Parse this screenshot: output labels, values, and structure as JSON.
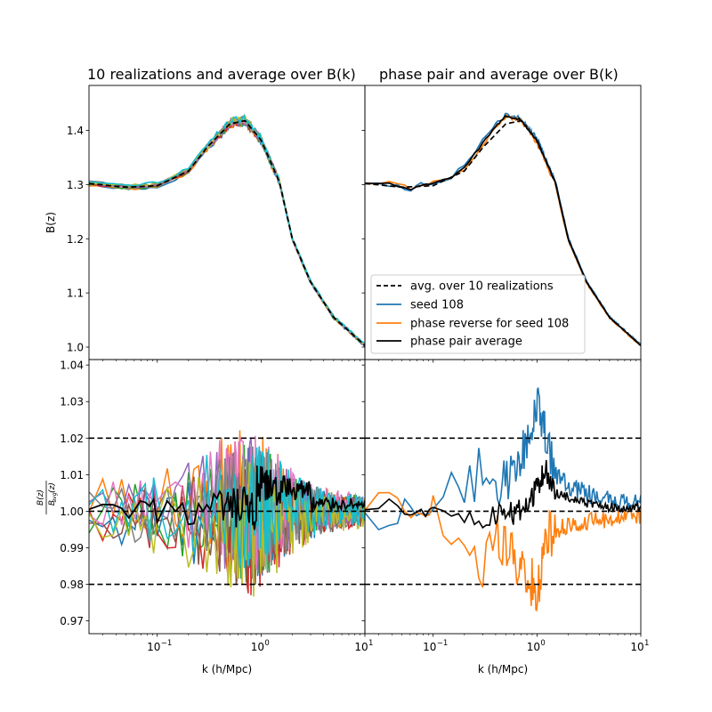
{
  "chart_data": [
    {
      "type": "line",
      "title": "10 realizations and average over B(k)",
      "xlabel": "",
      "ylabel": "B(z)",
      "xscale": "log",
      "xlim": [
        0.022,
        10
      ],
      "ylim": [
        0.977,
        1.483
      ],
      "yticks": [
        1.0,
        1.1,
        1.2,
        1.3,
        1.4
      ],
      "grid": false,
      "realization_series_count": 10,
      "realization_profile": {
        "k": [
          0.022,
          0.05,
          0.1,
          0.2,
          0.3,
          0.5,
          0.7,
          1.0,
          1.5,
          2.0,
          3.0,
          5.0,
          10.0
        ],
        "B": [
          1.302,
          1.295,
          1.298,
          1.325,
          1.368,
          1.412,
          1.418,
          1.382,
          1.305,
          1.2,
          1.12,
          1.055,
          1.003
        ]
      },
      "series": [
        {
          "name": "avg. over 10 realizations",
          "color": "#000000",
          "style": "dashed",
          "x": [
            0.022,
            0.05,
            0.1,
            0.2,
            0.3,
            0.5,
            0.7,
            1.0,
            1.5,
            2.0,
            3.0,
            5.0,
            10.0
          ],
          "y": [
            1.302,
            1.295,
            1.298,
            1.325,
            1.368,
            1.412,
            1.418,
            1.382,
            1.305,
            1.2,
            1.12,
            1.055,
            1.003
          ]
        }
      ]
    },
    {
      "type": "line",
      "title": "phase pair and average over B(k)",
      "xlabel": "",
      "ylabel": "",
      "xscale": "log",
      "xlim": [
        0.022,
        10
      ],
      "ylim": [
        0.977,
        1.483
      ],
      "grid": false,
      "legend": "lower-left",
      "series": [
        {
          "name": "avg. over 10 realizations",
          "color": "#000000",
          "style": "dashed",
          "x": [
            0.022,
            0.05,
            0.1,
            0.2,
            0.3,
            0.5,
            0.7,
            1.0,
            1.5,
            2.0,
            3.0,
            5.0,
            10.0
          ],
          "y": [
            1.302,
            1.295,
            1.298,
            1.325,
            1.368,
            1.412,
            1.418,
            1.382,
            1.305,
            1.2,
            1.12,
            1.055,
            1.003
          ]
        },
        {
          "name": "seed 108",
          "color": "#1f77b4",
          "style": "solid",
          "x": [
            0.022,
            0.04,
            0.06,
            0.08,
            0.1,
            0.15,
            0.2,
            0.3,
            0.4,
            0.5,
            0.7,
            1.0,
            1.5,
            2.0,
            3.0,
            5.0,
            10.0
          ],
          "y": [
            1.302,
            1.298,
            1.29,
            1.302,
            1.3,
            1.315,
            1.335,
            1.38,
            1.41,
            1.43,
            1.422,
            1.385,
            1.308,
            1.202,
            1.122,
            1.056,
            1.004
          ]
        },
        {
          "name": "phase reverse for seed 108",
          "color": "#ff7f0e",
          "style": "solid",
          "x": [
            0.022,
            0.04,
            0.06,
            0.08,
            0.1,
            0.15,
            0.2,
            0.3,
            0.4,
            0.5,
            0.7,
            1.0,
            1.5,
            2.0,
            3.0,
            5.0,
            10.0
          ],
          "y": [
            1.302,
            1.305,
            1.292,
            1.298,
            1.305,
            1.31,
            1.33,
            1.372,
            1.405,
            1.425,
            1.418,
            1.378,
            1.3,
            1.197,
            1.118,
            1.054,
            1.002
          ]
        },
        {
          "name": "phase pair average",
          "color": "#000000",
          "style": "solid",
          "x": [
            0.022,
            0.04,
            0.06,
            0.08,
            0.1,
            0.15,
            0.2,
            0.3,
            0.4,
            0.5,
            0.7,
            1.0,
            1.5,
            2.0,
            3.0,
            5.0,
            10.0
          ],
          "y": [
            1.302,
            1.301,
            1.291,
            1.3,
            1.302,
            1.312,
            1.332,
            1.376,
            1.407,
            1.427,
            1.42,
            1.381,
            1.304,
            1.199,
            1.12,
            1.055,
            1.003
          ]
        }
      ]
    },
    {
      "type": "line",
      "title": "",
      "xlabel": "k (h/Mpc)",
      "ylabel": "B(z) / B_avg(z)",
      "ylabel_num": "B(z)",
      "ylabel_den": "B",
      "ylabel_den_sub": "avg",
      "ylabel_den_tail": "(z)",
      "xscale": "log",
      "xlim": [
        0.022,
        10
      ],
      "ylim": [
        0.9665,
        1.0415
      ],
      "yticks": [
        0.97,
        0.98,
        0.99,
        1.0,
        1.01,
        1.02,
        1.03,
        1.04
      ],
      "xticks": [
        0.1,
        1,
        10
      ],
      "xtick_labels": [
        {
          "base": "10",
          "exp": "−1"
        },
        {
          "base": "10",
          "exp": "0"
        },
        {
          "base": "10",
          "exp": "1"
        }
      ],
      "reference_lines": [
        0.98,
        1.0,
        1.02
      ],
      "realization_series_count": 10,
      "noise_envelope": {
        "k": [
          0.022,
          0.05,
          0.1,
          0.2,
          0.3,
          0.5,
          0.8,
          1.2,
          2.0,
          4.0,
          10.0
        ],
        "amplitude": [
          0.006,
          0.008,
          0.01,
          0.013,
          0.015,
          0.018,
          0.02,
          0.017,
          0.01,
          0.006,
          0.004
        ]
      },
      "series": [
        {
          "name": "avg. over 10 realizations",
          "color": "#000000",
          "style": "dashed",
          "x": [
            0.022,
            10
          ],
          "y": [
            1.0,
            1.0
          ]
        }
      ]
    },
    {
      "type": "line",
      "title": "",
      "xlabel": "k (h/Mpc)",
      "ylabel": "",
      "xscale": "log",
      "xlim": [
        0.022,
        10
      ],
      "ylim": [
        0.9665,
        1.0415
      ],
      "xticks": [
        0.1,
        1,
        10
      ],
      "xtick_labels": [
        {
          "base": "10",
          "exp": "−1"
        },
        {
          "base": "10",
          "exp": "0"
        },
        {
          "base": "10",
          "exp": "1"
        }
      ],
      "reference_lines": [
        0.98,
        1.0,
        1.02
      ],
      "series": [
        {
          "name": "seed 108",
          "color": "#1f77b4",
          "style": "solid",
          "x": [
            0.022,
            0.04,
            0.06,
            0.1,
            0.15,
            0.2,
            0.3,
            0.4,
            0.5,
            0.7,
            1.0,
            1.2,
            1.5,
            2.0,
            3.0,
            5.0,
            10.0
          ],
          "y": [
            1.0,
            0.995,
            1.003,
            0.998,
            1.008,
            1.005,
            1.012,
            1.003,
            1.008,
            1.015,
            1.028,
            1.02,
            1.01,
            1.007,
            1.005,
            1.003,
            1.002
          ]
        },
        {
          "name": "phase reverse for seed 108",
          "color": "#ff7f0e",
          "style": "solid",
          "x": [
            0.022,
            0.04,
            0.06,
            0.1,
            0.15,
            0.2,
            0.3,
            0.4,
            0.5,
            0.7,
            1.0,
            1.2,
            1.5,
            2.0,
            3.0,
            5.0,
            10.0
          ],
          "y": [
            1.0,
            1.008,
            0.996,
            1.002,
            0.99,
            0.995,
            0.985,
            0.994,
            0.99,
            0.985,
            0.978,
            0.992,
            0.995,
            0.996,
            0.997,
            0.998,
            0.999
          ]
        },
        {
          "name": "phase pair average",
          "color": "#000000",
          "style": "solid",
          "x": [
            0.022,
            0.04,
            0.06,
            0.1,
            0.15,
            0.2,
            0.3,
            0.4,
            0.5,
            0.7,
            1.0,
            1.2,
            1.5,
            2.0,
            3.0,
            5.0,
            10.0
          ],
          "y": [
            1.0,
            1.003,
            0.999,
            1.0,
            0.999,
            1.0,
            0.999,
            0.999,
            0.999,
            1.0,
            1.006,
            1.012,
            1.005,
            1.004,
            1.002,
            1.001,
            1.001
          ]
        }
      ]
    }
  ],
  "colors": {
    "realizations": [
      "#1f77b4",
      "#ff7f0e",
      "#2ca02c",
      "#d62728",
      "#9467bd",
      "#8c564b",
      "#e377c2",
      "#7f7f7f",
      "#bcbd22",
      "#17becf"
    ],
    "axes": "#000000",
    "background": "#ffffff"
  }
}
